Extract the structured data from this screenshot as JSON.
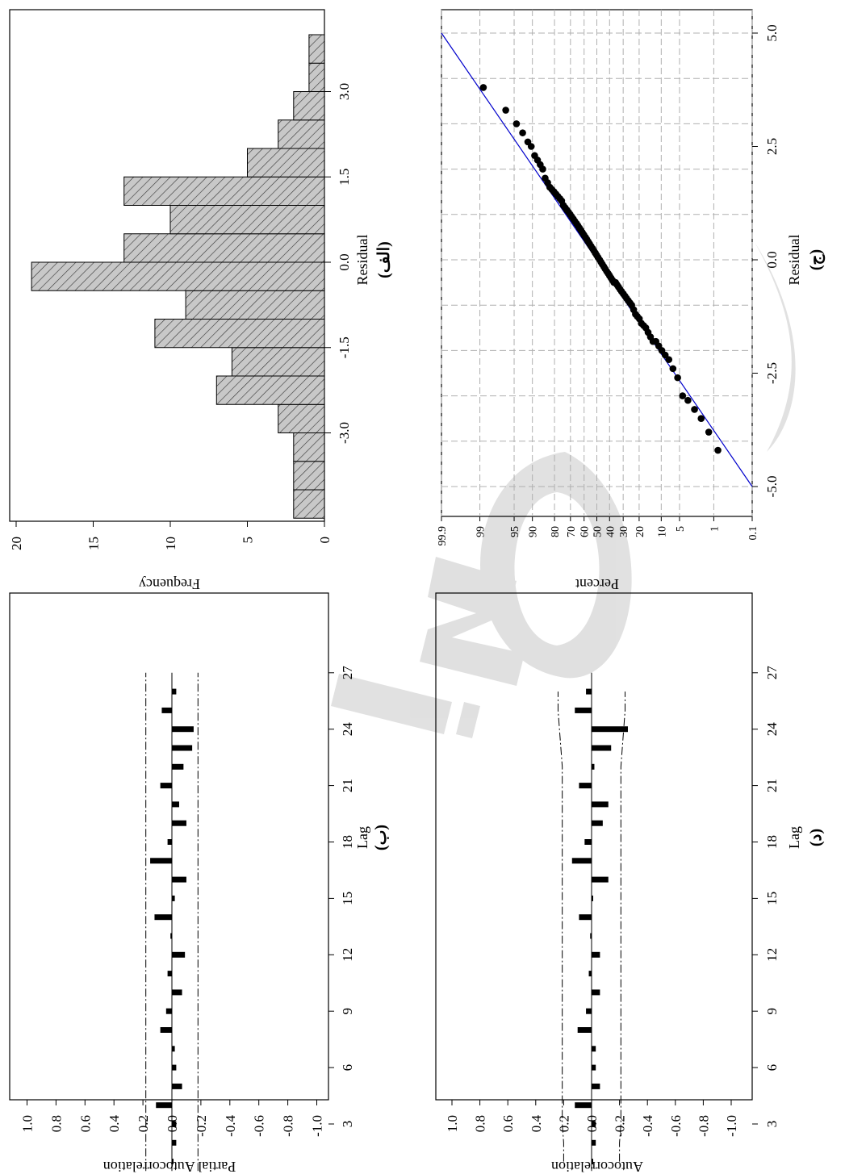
{
  "chart_data": [
    {
      "id": "hist",
      "type": "bar",
      "caption": "(الف)",
      "xlabel": "Residual",
      "ylabel": "Frequency",
      "xticks": [
        "-3.0",
        "-1.5",
        "0.0",
        "1.5",
        "3.0"
      ],
      "xtick_values": [
        -3.0,
        -1.5,
        0.0,
        1.5,
        3.0
      ],
      "yticks": [
        "0",
        "5",
        "10",
        "15",
        "20"
      ],
      "ylim": [
        0,
        20
      ],
      "bin_width": 0.5,
      "bin_centers": [
        -4.25,
        -3.75,
        -3.25,
        -2.75,
        -2.25,
        -1.75,
        -1.25,
        -0.75,
        -0.25,
        0.25,
        0.75,
        1.25,
        1.75,
        2.25,
        2.75,
        3.25,
        3.75
      ],
      "values": [
        2,
        2,
        2,
        3,
        7,
        6,
        11,
        9,
        19,
        13,
        10,
        13,
        5,
        3,
        2,
        1,
        1
      ],
      "bar_pattern": "diagonal-hatch",
      "bar_color": "#c8c8c8"
    },
    {
      "id": "pacf",
      "type": "bar",
      "caption": "(ب)",
      "xlabel": "Lag",
      "ylabel": "Partial Autocorrelation",
      "xticks": [
        "3",
        "6",
        "9",
        "12",
        "15",
        "18",
        "21",
        "24",
        "27"
      ],
      "yticks": [
        "1.0",
        "0.8",
        "0.6",
        "0.4",
        "0.2",
        "0.0",
        "-0.2",
        "-0.4",
        "-0.6",
        "-0.8",
        "-1.0"
      ],
      "ylim": [
        -1.0,
        1.0
      ],
      "lags": [
        1,
        2,
        3,
        4,
        5,
        6,
        7,
        8,
        9,
        10,
        11,
        12,
        13,
        14,
        15,
        16,
        17,
        18,
        19,
        20,
        21,
        22,
        23,
        24,
        25,
        26
      ],
      "values": [
        0.0,
        -0.03,
        -0.03,
        0.11,
        -0.07,
        -0.03,
        -0.02,
        0.08,
        0.04,
        -0.07,
        0.03,
        -0.09,
        0.01,
        0.12,
        -0.02,
        -0.1,
        0.15,
        0.03,
        -0.1,
        -0.05,
        0.08,
        -0.08,
        -0.14,
        -0.15,
        0.07,
        -0.03
      ],
      "confidence_limits": [
        0.18,
        -0.18
      ],
      "grid": false
    },
    {
      "id": "normal-prob",
      "type": "scatter",
      "caption": "(ج)",
      "xlabel": "Residual",
      "ylabel": "Percent",
      "xticks": [
        "-5.0",
        "-2.5",
        "0.0",
        "2.5",
        "5.0"
      ],
      "xtick_values": [
        -5.0,
        -2.5,
        0.0,
        2.5,
        5.0
      ],
      "xlim": [
        -5.0,
        5.0
      ],
      "yticks": [
        "99.9",
        "99",
        "95",
        "90",
        "80",
        "70",
        "60",
        "50",
        "40",
        "30",
        "20",
        "10",
        "5",
        "1",
        "0.1"
      ],
      "ytick_values": [
        99.9,
        99,
        95,
        90,
        80,
        70,
        60,
        50,
        40,
        30,
        20,
        10,
        5,
        1,
        0.1
      ],
      "scale": "normal-probability",
      "grid": true,
      "fit_line": {
        "x": [
          -5.0,
          5.0
        ],
        "y": [
          0.1,
          99.9
        ],
        "color": "#0000cc"
      },
      "points": {
        "x": [
          -4.2,
          -3.8,
          -3.5,
          -3.3,
          -3.1,
          -3.0,
          -2.6,
          -2.4,
          -2.2,
          -2.1,
          -2.0,
          -1.9,
          -1.8,
          -1.8,
          -1.7,
          -1.6,
          -1.5,
          -1.45,
          -1.4,
          -1.3,
          -1.25,
          -1.2,
          -1.1,
          -1.0,
          -0.95,
          -0.9,
          -0.85,
          -0.8,
          -0.75,
          -0.7,
          -0.65,
          -0.6,
          -0.55,
          -0.5,
          -0.5,
          -0.45,
          -0.4,
          -0.35,
          -0.3,
          -0.25,
          -0.2,
          -0.15,
          -0.1,
          -0.05,
          0.0,
          0.05,
          0.1,
          0.15,
          0.2,
          0.25,
          0.3,
          0.35,
          0.4,
          0.45,
          0.5,
          0.55,
          0.6,
          0.65,
          0.7,
          0.75,
          0.8,
          0.85,
          0.9,
          0.95,
          1.0,
          1.05,
          1.1,
          1.15,
          1.2,
          1.3,
          1.35,
          1.4,
          1.45,
          1.5,
          1.55,
          1.6,
          1.7,
          1.8,
          2.0,
          2.1,
          2.2,
          2.3,
          2.5,
          2.6,
          2.8,
          3.0,
          3.3,
          3.8
        ],
        "y": [
          0.8,
          1.3,
          1.9,
          2.6,
          3.5,
          4.4,
          5.4,
          6.5,
          7.6,
          8.7,
          9.8,
          10.9,
          12.0,
          13.2,
          14.3,
          15.4,
          16.5,
          17.6,
          18.8,
          19.9,
          21.0,
          22.1,
          23.2,
          24.4,
          25.5,
          26.6,
          27.7,
          28.8,
          29.9,
          31.1,
          32.2,
          33.3,
          34.4,
          35.5,
          36.7,
          37.8,
          38.9,
          40.0,
          41.1,
          42.3,
          43.4,
          44.5,
          45.6,
          46.7,
          47.8,
          49.0,
          50.1,
          51.2,
          52.3,
          53.4,
          54.6,
          55.7,
          56.8,
          57.9,
          59.0,
          60.2,
          61.3,
          62.4,
          63.5,
          64.6,
          65.7,
          66.9,
          68.0,
          69.1,
          70.2,
          71.3,
          72.5,
          73.6,
          74.7,
          75.8,
          76.9,
          78.1,
          79.2,
          80.3,
          81.4,
          82.5,
          83.6,
          84.8,
          85.9,
          87.0,
          88.1,
          89.2,
          90.4,
          91.5,
          93.0,
          94.5,
          96.5,
          98.8
        ]
      }
    },
    {
      "id": "acf",
      "type": "bar",
      "caption": "(د)",
      "xlabel": "Lag",
      "ylabel": "Autocorrelation",
      "xticks": [
        "3",
        "6",
        "9",
        "12",
        "15",
        "18",
        "21",
        "24",
        "27"
      ],
      "yticks": [
        "1.0",
        "0.8",
        "0.6",
        "0.4",
        "0.2",
        "0.0",
        "-0.2",
        "-0.4",
        "-0.6",
        "-0.8",
        "-1.0"
      ],
      "ylim": [
        -1.0,
        1.0
      ],
      "lags": [
        1,
        2,
        3,
        4,
        5,
        6,
        7,
        8,
        9,
        10,
        11,
        12,
        13,
        14,
        15,
        16,
        17,
        18,
        19,
        20,
        21,
        22,
        23,
        24,
        25,
        26
      ],
      "values": [
        0.0,
        -0.03,
        -0.03,
        0.12,
        -0.06,
        -0.03,
        -0.03,
        0.1,
        0.04,
        -0.06,
        0.02,
        -0.06,
        0.01,
        0.09,
        0.0,
        -0.12,
        0.14,
        0.05,
        -0.08,
        -0.12,
        0.09,
        -0.02,
        -0.14,
        -0.26,
        0.12,
        0.04
      ],
      "confidence_limits_upper": [
        0.2,
        0.2,
        0.21,
        0.21,
        0.21,
        0.21,
        0.21,
        0.21,
        0.21,
        0.21,
        0.21,
        0.21,
        0.21,
        0.21,
        0.21,
        0.21,
        0.21,
        0.21,
        0.21,
        0.21,
        0.21,
        0.21,
        0.22,
        0.23,
        0.24,
        0.24
      ],
      "grid": false
    }
  ],
  "watermark": {
    "text": "Archive of SID",
    "color": "#d4d4d4"
  }
}
